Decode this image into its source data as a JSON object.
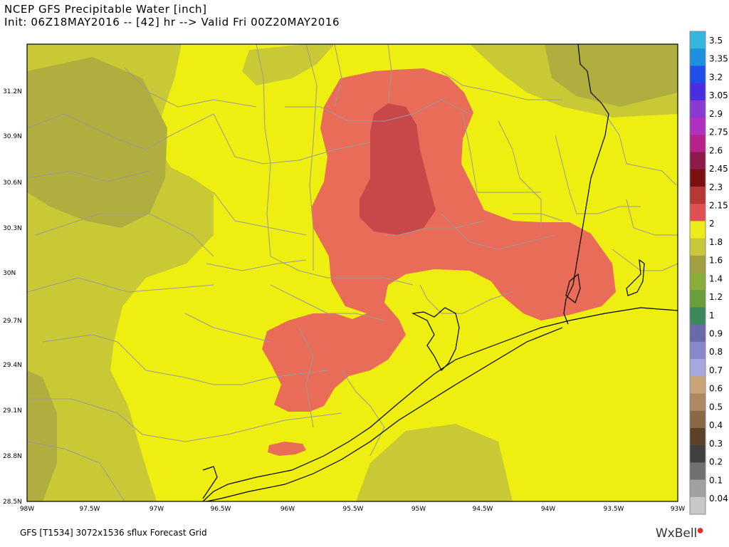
{
  "title": {
    "line1": "NCEP GFS Precipitable Water [inch]",
    "line2": "Init: 06Z18MAY2016 -- [42] hr --> Valid Fri 00Z20MAY2016"
  },
  "footer": {
    "left": "GFS [T1534] 3072x1536 sflux Forecast Grid",
    "brand": "WxBell"
  },
  "map": {
    "lon_range": [
      -98,
      -93
    ],
    "lat_range": [
      28.5,
      31.5
    ],
    "lat_ticks": [
      "31.2N",
      "30.9N",
      "30.6N",
      "30.3N",
      "30N",
      "29.7N",
      "29.4N",
      "29.1N",
      "28.8N",
      "28.5N"
    ],
    "lon_ticks": [
      "98W",
      "97.5W",
      "97W",
      "96.5W",
      "96W",
      "95.5W",
      "95W",
      "94.5W",
      "94W",
      "93.5W",
      "93W"
    ],
    "max_region_value": "2.15-2.3",
    "main_region_value": "2-2.15"
  },
  "colorbar": {
    "labels": [
      "3.5",
      "3.35",
      "3.2",
      "3.05",
      "2.9",
      "2.75",
      "2.6",
      "2.45",
      "2.3",
      "2.15",
      "2",
      "1.8",
      "1.6",
      "1.4",
      "1.2",
      "1",
      "0.9",
      "0.8",
      "0.7",
      "0.6",
      "0.5",
      "0.4",
      "0.3",
      "0.2",
      "0.1",
      "0.04"
    ],
    "colors": [
      "#33b7dc",
      "#1f8fe0",
      "#1f4fe8",
      "#4a2ee0",
      "#8a3ad0",
      "#b030c0",
      "#b8208a",
      "#8c1a4a",
      "#7a1010",
      "#b83838",
      "#e05050",
      "#ecec1a",
      "#c8c83a",
      "#a0a042",
      "#8aac3a",
      "#6a9e3a",
      "#3c8a5c",
      "#6a6aa8",
      "#8888c8",
      "#a8a8e0",
      "#c8a478",
      "#ad8860",
      "#8a6a44",
      "#5a4228",
      "#404040",
      "#707070",
      "#a0a0a0",
      "#c8c8c8"
    ]
  }
}
